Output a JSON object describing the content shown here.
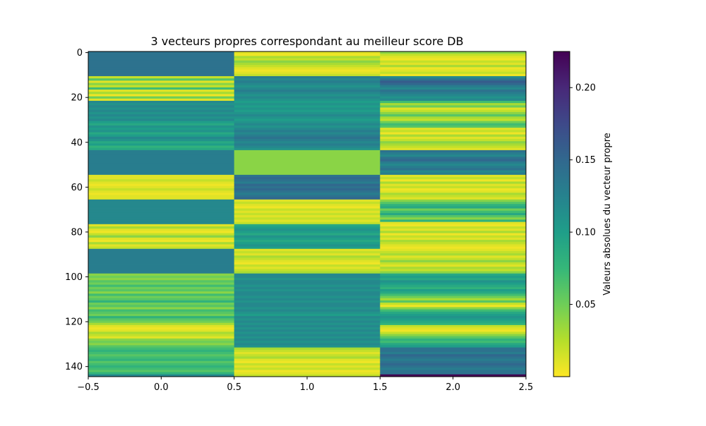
{
  "chart_data": {
    "type": "heatmap",
    "title": "3 vecteurs propres correspondant au meilleur score DB",
    "xlabel": "",
    "ylabel": "",
    "colorbar_label": "Valeurs absolues du vecteur propre",
    "colormap": "viridis_r",
    "value_range": [
      0.0,
      0.225
    ],
    "xlim": [
      -0.5,
      2.5
    ],
    "ylim": [
      144.5,
      -0.5
    ],
    "x_ticks": [
      "−0.5",
      "0.0",
      "0.5",
      "1.0",
      "1.5",
      "2.0",
      "2.5"
    ],
    "y_ticks": [
      "0",
      "20",
      "40",
      "60",
      "80",
      "100",
      "120",
      "140"
    ],
    "colorbar_ticks": [
      "0.05",
      "0.10",
      "0.15",
      "0.20"
    ],
    "n_rows": 145,
    "columns": [
      {
        "col": 0,
        "segments": [
          {
            "start": 0,
            "end": 10,
            "values": [
              0.14
            ]
          },
          {
            "start": 11,
            "end": 21,
            "values": [
              0.02,
              0.06,
              0.01,
              0.04,
              0.02,
              0.07,
              0.01,
              0.03,
              0.005,
              0.05,
              0.01
            ]
          },
          {
            "start": 22,
            "end": 43,
            "values": [
              0.12,
              0.11,
              0.12,
              0.11,
              0.12,
              0.11,
              0.12,
              0.11,
              0.12,
              0.1,
              0.09,
              0.11,
              0.1,
              0.11,
              0.09,
              0.1,
              0.12,
              0.11,
              0.09,
              0.1,
              0.08,
              0.09
            ]
          },
          {
            "start": 44,
            "end": 54,
            "values": [
              0.13
            ]
          },
          {
            "start": 55,
            "end": 65,
            "values": [
              0.01,
              0.01,
              0.02,
              0.01,
              0.005,
              0.01,
              0.02,
              0.01,
              0.005,
              0.01,
              0.01
            ]
          },
          {
            "start": 66,
            "end": 76,
            "values": [
              0.12
            ]
          },
          {
            "start": 77,
            "end": 87,
            "values": [
              0.01,
              0.03,
              0.01,
              0.005,
              0.02,
              0.04,
              0.01,
              0.005,
              0.03,
              0.01,
              0.02
            ]
          },
          {
            "start": 88,
            "end": 98,
            "values": [
              0.13
            ]
          },
          {
            "start": 99,
            "end": 131,
            "values": [
              0.04,
              0.05,
              0.04,
              0.06,
              0.05,
              0.07,
              0.05,
              0.06,
              0.04,
              0.07,
              0.05,
              0.06,
              0.08,
              0.05,
              0.06,
              0.04,
              0.07,
              0.06,
              0.05,
              0.08,
              0.06,
              0.05,
              0.03,
              0.01,
              0.005,
              0.01,
              0.03,
              0.02,
              0.01,
              0.04,
              0.05,
              0.04,
              0.06
            ]
          },
          {
            "start": 132,
            "end": 144,
            "values": [
              0.07,
              0.08,
              0.07,
              0.06,
              0.07,
              0.08,
              0.06,
              0.07,
              0.08,
              0.07,
              0.06,
              0.08,
              0.12
            ]
          }
        ]
      },
      {
        "col": 1,
        "segments": [
          {
            "start": 0,
            "end": 10,
            "values": [
              0.01,
              0.005,
              0.03,
              0.02,
              0.04,
              0.03,
              0.02,
              0.01,
              0.005,
              0.01,
              0.02
            ]
          },
          {
            "start": 11,
            "end": 43,
            "values": [
              0.13,
              0.12,
              0.13,
              0.12,
              0.11,
              0.12,
              0.13,
              0.12,
              0.11,
              0.12,
              0.11,
              0.1,
              0.11,
              0.1,
              0.11,
              0.1,
              0.11,
              0.12,
              0.11,
              0.1,
              0.11,
              0.12,
              0.11,
              0.12,
              0.13,
              0.12,
              0.13,
              0.14,
              0.13,
              0.12,
              0.13,
              0.12,
              0.11
            ]
          },
          {
            "start": 44,
            "end": 54,
            "values": [
              0.04
            ]
          },
          {
            "start": 55,
            "end": 65,
            "values": [
              0.14,
              0.15,
              0.14,
              0.13,
              0.15,
              0.14,
              0.15,
              0.14,
              0.13,
              0.14,
              0.15
            ]
          },
          {
            "start": 66,
            "end": 76,
            "values": [
              0.01,
              0.02,
              0.01,
              0.005,
              0.02,
              0.01,
              0.02,
              0.01,
              0.02,
              0.01,
              0.02
            ]
          },
          {
            "start": 77,
            "end": 87,
            "values": [
              0.09,
              0.1,
              0.11,
              0.1,
              0.09,
              0.11,
              0.1,
              0.09,
              0.1,
              0.11,
              0.1
            ]
          },
          {
            "start": 88,
            "end": 98,
            "values": [
              0.01,
              0.02,
              0.01,
              0.03,
              0.02,
              0.01,
              0.005,
              0.02,
              0.01,
              0.02,
              0.03
            ]
          },
          {
            "start": 99,
            "end": 131,
            "values": [
              0.12,
              0.12,
              0.11,
              0.12,
              0.12,
              0.11,
              0.12,
              0.11,
              0.12,
              0.12,
              0.11,
              0.12,
              0.11,
              0.12,
              0.12,
              0.11,
              0.12,
              0.11,
              0.1,
              0.12,
              0.11,
              0.12,
              0.11,
              0.12,
              0.11,
              0.12,
              0.11,
              0.12,
              0.11,
              0.12,
              0.11,
              0.12,
              0.11
            ]
          },
          {
            "start": 132,
            "end": 144,
            "values": [
              0.03,
              0.02,
              0.01,
              0.02,
              0.03,
              0.01,
              0.005,
              0.02,
              0.01,
              0.02,
              0.005,
              0.01,
              0.02
            ]
          }
        ]
      },
      {
        "col": 2,
        "segments": [
          {
            "start": 0,
            "end": 10,
            "values": [
              0.04,
              0.02,
              0.01,
              0.005,
              0.02,
              0.01,
              0.03,
              0.005,
              0.01,
              0.02,
              0.005
            ]
          },
          {
            "start": 11,
            "end": 21,
            "values": [
              0.12,
              0.14,
              0.16,
              0.15,
              0.13,
              0.12,
              0.14,
              0.13,
              0.12,
              0.11,
              0.12
            ]
          },
          {
            "start": 22,
            "end": 43,
            "values": [
              0.07,
              0.03,
              0.05,
              0.01,
              0.02,
              0.04,
              0.06,
              0.03,
              0.02,
              0.05,
              0.07,
              0.06,
              0.01,
              0.02,
              0.005,
              0.03,
              0.01,
              0.02,
              0.04,
              0.03,
              0.02,
              0.01
            ]
          },
          {
            "start": 44,
            "end": 54,
            "values": [
              0.14,
              0.13,
              0.12,
              0.14,
              0.15,
              0.13,
              0.12,
              0.13,
              0.14,
              0.12,
              0.13
            ]
          },
          {
            "start": 55,
            "end": 65,
            "values": [
              0.01,
              0.02,
              0.005,
              0.03,
              0.01,
              0.02,
              0.005,
              0.01,
              0.03,
              0.02,
              0.01
            ]
          },
          {
            "start": 66,
            "end": 76,
            "values": [
              0.04,
              0.06,
              0.08,
              0.09,
              0.05,
              0.07,
              0.09,
              0.06,
              0.04,
              0.08,
              0.01
            ]
          },
          {
            "start": 77,
            "end": 87,
            "values": [
              0.005,
              0.02,
              0.01,
              0.03,
              0.005,
              0.02,
              0.01,
              0.03,
              0.02,
              0.01,
              0.005
            ]
          },
          {
            "start": 88,
            "end": 98,
            "values": [
              0.01,
              0.02,
              0.03,
              0.01,
              0.02,
              0.04,
              0.02,
              0.01,
              0.03,
              0.02,
              0.04
            ]
          },
          {
            "start": 99,
            "end": 131,
            "values": [
              0.09,
              0.1,
              0.09,
              0.11,
              0.1,
              0.09,
              0.08,
              0.1,
              0.09,
              0.07,
              0.05,
              0.03,
              0.06,
              0.02,
              0.005,
              0.04,
              0.07,
              0.09,
              0.1,
              0.11,
              0.1,
              0.09,
              0.08,
              0.02,
              0.01,
              0.005,
              0.02,
              0.04,
              0.06,
              0.08,
              0.07,
              0.09,
              0.1
            ]
          },
          {
            "start": 132,
            "end": 144,
            "values": [
              0.14,
              0.14,
              0.13,
              0.15,
              0.14,
              0.13,
              0.14,
              0.15,
              0.14,
              0.13,
              0.14,
              0.14,
              0.225
            ]
          }
        ]
      }
    ]
  }
}
